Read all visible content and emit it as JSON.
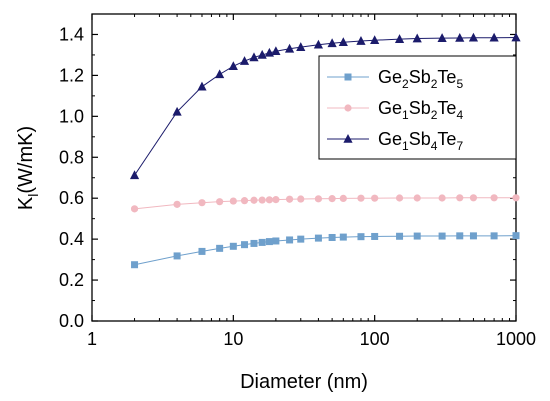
{
  "chart_data": {
    "type": "line",
    "xlabel": "Diameter (nm)",
    "ylabel": {
      "main": "K",
      "sub": "l",
      "unit": "(W/mK)"
    },
    "xscale": "log",
    "xlim": [
      1,
      1000
    ],
    "ylim": [
      0.0,
      1.5
    ],
    "xticks": [
      1,
      10,
      100,
      1000
    ],
    "xtick_labels": [
      "1",
      "10",
      "100",
      "1000"
    ],
    "yticks": [
      0.0,
      0.2,
      0.4,
      0.6,
      0.8,
      1.0,
      1.2,
      1.4
    ],
    "ytick_labels": [
      "0.0",
      "0.2",
      "0.4",
      "0.6",
      "0.8",
      "1.0",
      "1.2",
      "1.4"
    ],
    "grid": false,
    "legend_position": "top-right",
    "series": [
      {
        "name": "Ge2Sb2Te5",
        "legend_parts": [
          [
            "Ge",
            ""
          ],
          [
            "2",
            "sub"
          ],
          [
            "Sb",
            ""
          ],
          [
            "2",
            "sub"
          ],
          [
            "Te",
            ""
          ],
          [
            "5",
            "sub"
          ]
        ],
        "color": "#6fa0cc",
        "marker": "square",
        "x": [
          2,
          4,
          6,
          8,
          10,
          12,
          14,
          16,
          18,
          20,
          25,
          30,
          40,
          50,
          60,
          80,
          100,
          150,
          200,
          300,
          400,
          500,
          700,
          1000
        ],
        "y": [
          0.275,
          0.318,
          0.34,
          0.355,
          0.365,
          0.373,
          0.379,
          0.384,
          0.388,
          0.391,
          0.396,
          0.4,
          0.405,
          0.408,
          0.41,
          0.412,
          0.413,
          0.414,
          0.415,
          0.415,
          0.416,
          0.416,
          0.416,
          0.417
        ]
      },
      {
        "name": "Ge1Sb2Te4",
        "legend_parts": [
          [
            "Ge",
            ""
          ],
          [
            "1",
            "sub"
          ],
          [
            "Sb",
            ""
          ],
          [
            "2",
            "sub"
          ],
          [
            "Te",
            ""
          ],
          [
            "4",
            "sub"
          ]
        ],
        "color": "#f1b8c0",
        "marker": "circle",
        "x": [
          2,
          4,
          6,
          8,
          10,
          12,
          14,
          16,
          18,
          20,
          25,
          30,
          40,
          50,
          60,
          80,
          100,
          150,
          200,
          300,
          400,
          500,
          700,
          1000
        ],
        "y": [
          0.548,
          0.57,
          0.578,
          0.583,
          0.586,
          0.588,
          0.59,
          0.591,
          0.592,
          0.593,
          0.595,
          0.596,
          0.597,
          0.598,
          0.599,
          0.6,
          0.6,
          0.601,
          0.601,
          0.601,
          0.602,
          0.602,
          0.602,
          0.602
        ]
      },
      {
        "name": "Ge1Sb4Te7",
        "legend_parts": [
          [
            "Ge",
            ""
          ],
          [
            "1",
            "sub"
          ],
          [
            "Sb",
            ""
          ],
          [
            "4",
            "sub"
          ],
          [
            "Te",
            ""
          ],
          [
            "7",
            "sub"
          ]
        ],
        "color": "#1b1b6b",
        "marker": "triangle",
        "x": [
          2,
          4,
          6,
          8,
          10,
          12,
          14,
          16,
          18,
          20,
          25,
          30,
          40,
          50,
          60,
          80,
          100,
          150,
          200,
          300,
          400,
          500,
          700,
          1000
        ],
        "y": [
          0.712,
          1.022,
          1.145,
          1.205,
          1.245,
          1.27,
          1.288,
          1.3,
          1.31,
          1.318,
          1.33,
          1.338,
          1.35,
          1.357,
          1.362,
          1.368,
          1.372,
          1.377,
          1.38,
          1.382,
          1.383,
          1.384,
          1.384,
          1.385
        ]
      }
    ]
  }
}
